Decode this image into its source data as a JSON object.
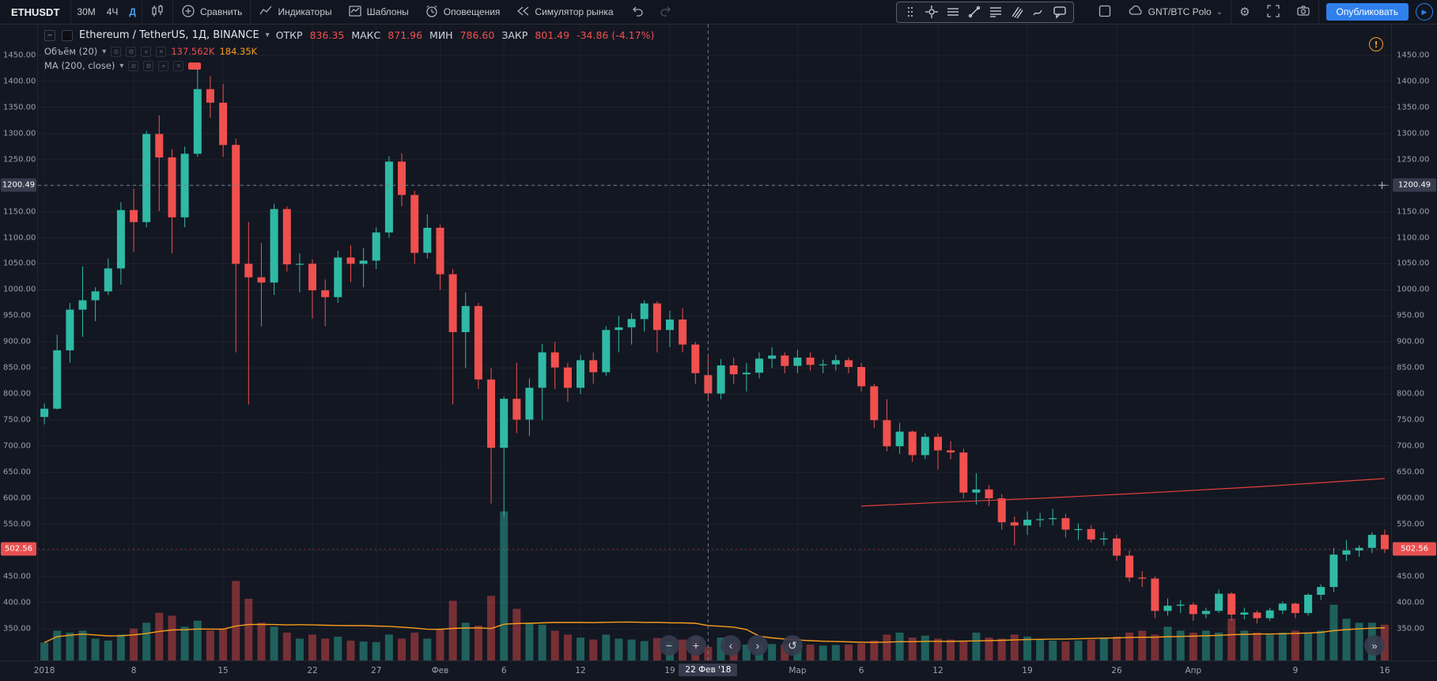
{
  "toolbar": {
    "symbol": "ETHUSDT",
    "intervals": {
      "m30": "30M",
      "h4": "4Ч",
      "d1": "Д"
    },
    "compare": "Сравнить",
    "indicators": "Индикаторы",
    "templates": "Шаблоны",
    "alerts": "Оповещения",
    "simulator": "Симулятор рынка",
    "account": "GNT/BTC Polo",
    "publish": "Опубликовать"
  },
  "symbol_header": {
    "title": "Ethereum / TetherUS, 1Д, BINANCE",
    "open_label": "ОТКР",
    "open": "836.35",
    "high_label": "МАКС",
    "high": "871.96",
    "low_label": "МИН",
    "low": "786.60",
    "close_label": "ЗАКР",
    "close": "801.49",
    "change": "-34.86 (-4.17%)"
  },
  "legend": {
    "volume_title": "Объём (20)",
    "volume_value": "137.562K",
    "volume_ma_value": "184.35K",
    "ma_title": "MA (200, close)"
  },
  "colors": {
    "up": "#2fbaa5",
    "down": "#f0504e",
    "volume_ma": "#f89e1b",
    "ma200": "#e0403a",
    "accent": "#2f80ed",
    "crosshair": "#747d8c"
  },
  "price_axis": {
    "ticks": [
      1450,
      1400,
      1350,
      1300,
      1250,
      1200,
      1150,
      1100,
      1050,
      1000,
      950,
      900,
      850,
      800,
      750,
      700,
      650,
      600,
      550,
      500,
      450,
      400,
      350
    ],
    "crosshair_label": "1200.49",
    "last_label": "502.56"
  },
  "time_axis": {
    "labels": [
      {
        "t": "2018",
        "i": 0
      },
      {
        "t": "8",
        "i": 7
      },
      {
        "t": "15",
        "i": 14
      },
      {
        "t": "22",
        "i": 21
      },
      {
        "t": "27",
        "i": 26
      },
      {
        "t": "Фев",
        "i": 31
      },
      {
        "t": "6",
        "i": 36
      },
      {
        "t": "12",
        "i": 42
      },
      {
        "t": "19",
        "i": 49
      },
      {
        "t": "Мар",
        "i": 59
      },
      {
        "t": "6",
        "i": 64
      },
      {
        "t": "12",
        "i": 70
      },
      {
        "t": "19",
        "i": 77
      },
      {
        "t": "26",
        "i": 84
      },
      {
        "t": "Апр",
        "i": 90
      },
      {
        "t": "9",
        "i": 98
      },
      {
        "t": "16",
        "i": 105
      }
    ],
    "crosshair_label": "22 Фев '18"
  },
  "nav": {
    "zoom_out": "−",
    "zoom_in": "+",
    "left": "‹",
    "right": "›",
    "reset": "↺",
    "goto_end": "»",
    "warning": "!"
  },
  "chart_data": {
    "type": "candlestick",
    "symbol": "ETHUSDT",
    "exchange": "BINANCE",
    "interval": "1D",
    "start_date": "2018-01-01",
    "price_axis_min": 289,
    "price_axis_max": 1509,
    "crosshair_price": 1200.49,
    "crosshair_index": 52,
    "last_price": 502.56,
    "volume_axis_max": 1600,
    "volume_ma_window": 20,
    "columns": [
      "open",
      "high",
      "low",
      "close",
      "volume_k"
    ],
    "candles": [
      [
        756,
        782,
        742,
        772,
        180
      ],
      [
        772,
        914,
        770,
        884,
        300
      ],
      [
        884,
        975,
        860,
        962,
        280
      ],
      [
        962,
        1045,
        910,
        980,
        300
      ],
      [
        980,
        1005,
        940,
        997,
        220
      ],
      [
        997,
        1060,
        990,
        1041,
        200
      ],
      [
        1041,
        1168,
        1010,
        1153,
        260
      ],
      [
        1153,
        1194,
        1073,
        1130,
        320
      ],
      [
        1130,
        1305,
        1120,
        1299,
        380
      ],
      [
        1299,
        1335,
        1151,
        1254,
        480
      ],
      [
        1254,
        1270,
        1070,
        1139,
        450
      ],
      [
        1139,
        1275,
        1120,
        1261,
        340
      ],
      [
        1261,
        1424,
        1255,
        1385,
        400
      ],
      [
        1385,
        1410,
        1330,
        1359,
        300
      ],
      [
        1359,
        1395,
        1255,
        1278,
        320
      ],
      [
        1278,
        1290,
        880,
        1050,
        800
      ],
      [
        1050,
        1130,
        780,
        1024,
        620
      ],
      [
        1024,
        1090,
        930,
        1014,
        380
      ],
      [
        1014,
        1165,
        990,
        1155,
        340
      ],
      [
        1155,
        1160,
        1035,
        1049,
        280
      ],
      [
        1049,
        1070,
        995,
        1050,
        220
      ],
      [
        1050,
        1058,
        945,
        999,
        260
      ],
      [
        999,
        1020,
        930,
        986,
        220
      ],
      [
        986,
        1075,
        975,
        1062,
        240
      ],
      [
        1062,
        1085,
        1015,
        1050,
        200
      ],
      [
        1050,
        1080,
        1005,
        1056,
        190
      ],
      [
        1056,
        1120,
        1040,
        1110,
        185
      ],
      [
        1110,
        1256,
        1100,
        1246,
        260
      ],
      [
        1246,
        1262,
        1160,
        1182,
        220
      ],
      [
        1182,
        1190,
        1050,
        1071,
        280
      ],
      [
        1071,
        1145,
        1060,
        1119,
        220
      ],
      [
        1119,
        1125,
        1000,
        1030,
        320
      ],
      [
        1030,
        1040,
        780,
        919,
        600
      ],
      [
        919,
        995,
        850,
        969,
        380
      ],
      [
        969,
        975,
        810,
        828,
        350
      ],
      [
        828,
        850,
        590,
        697,
        650
      ],
      [
        697,
        795,
        565,
        791,
        1500
      ],
      [
        791,
        860,
        725,
        751,
        520
      ],
      [
        751,
        830,
        720,
        812,
        380
      ],
      [
        812,
        896,
        750,
        880,
        360
      ],
      [
        880,
        900,
        810,
        851,
        300
      ],
      [
        851,
        860,
        785,
        812,
        260
      ],
      [
        812,
        875,
        800,
        865,
        230
      ],
      [
        865,
        880,
        820,
        842,
        210
      ],
      [
        842,
        930,
        835,
        923,
        260
      ],
      [
        923,
        950,
        880,
        928,
        220
      ],
      [
        928,
        955,
        895,
        944,
        210
      ],
      [
        944,
        980,
        920,
        974,
        195
      ],
      [
        974,
        978,
        880,
        923,
        225
      ],
      [
        923,
        960,
        890,
        943,
        190
      ],
      [
        943,
        965,
        880,
        895,
        210
      ],
      [
        895,
        900,
        820,
        840,
        240
      ],
      [
        836.35,
        871.96,
        786.6,
        801.49,
        137.562
      ],
      [
        801,
        867,
        790,
        855,
        230
      ],
      [
        855,
        870,
        820,
        838,
        180
      ],
      [
        838,
        860,
        805,
        841,
        160
      ],
      [
        841,
        880,
        830,
        868,
        170
      ],
      [
        868,
        890,
        850,
        874,
        165
      ],
      [
        874,
        880,
        840,
        854,
        160
      ],
      [
        854,
        885,
        840,
        870,
        170
      ],
      [
        870,
        880,
        845,
        856,
        160
      ],
      [
        856,
        866,
        840,
        857,
        150
      ],
      [
        857,
        875,
        845,
        865,
        155
      ],
      [
        865,
        870,
        840,
        852,
        160
      ],
      [
        852,
        860,
        805,
        815,
        170
      ],
      [
        815,
        820,
        735,
        750,
        200
      ],
      [
        750,
        790,
        690,
        700,
        260
      ],
      [
        700,
        745,
        685,
        728,
        280
      ],
      [
        728,
        730,
        670,
        683,
        230
      ],
      [
        683,
        725,
        675,
        718,
        250
      ],
      [
        718,
        725,
        655,
        692,
        220
      ],
      [
        692,
        710,
        675,
        688,
        210
      ],
      [
        688,
        695,
        600,
        611,
        200
      ],
      [
        611,
        648,
        588,
        617,
        280
      ],
      [
        617,
        625,
        585,
        600,
        230
      ],
      [
        600,
        608,
        540,
        554,
        220
      ],
      [
        554,
        565,
        510,
        548,
        260
      ],
      [
        548,
        575,
        530,
        559,
        240
      ],
      [
        559,
        572,
        545,
        560,
        210
      ],
      [
        560,
        580,
        548,
        562,
        200
      ],
      [
        562,
        570,
        525,
        540,
        190
      ],
      [
        540,
        552,
        520,
        541,
        200
      ],
      [
        541,
        548,
        515,
        521,
        210
      ],
      [
        521,
        535,
        510,
        523,
        230
      ],
      [
        523,
        530,
        480,
        490,
        240
      ],
      [
        490,
        500,
        440,
        448,
        280
      ],
      [
        448,
        460,
        430,
        446,
        300
      ],
      [
        446,
        450,
        370,
        384,
        260
      ],
      [
        384,
        408,
        375,
        394,
        340
      ],
      [
        394,
        405,
        380,
        396,
        300
      ],
      [
        396,
        400,
        365,
        378,
        280
      ],
      [
        378,
        390,
        370,
        384,
        300
      ],
      [
        384,
        425,
        380,
        417,
        280
      ],
      [
        417,
        420,
        365,
        377,
        420
      ],
      [
        377,
        390,
        368,
        381,
        300
      ],
      [
        381,
        385,
        360,
        370,
        280
      ],
      [
        370,
        390,
        365,
        385,
        260
      ],
      [
        385,
        402,
        378,
        398,
        280
      ],
      [
        398,
        400,
        370,
        380,
        300
      ],
      [
        380,
        418,
        375,
        415,
        280
      ],
      [
        415,
        435,
        405,
        430,
        300
      ],
      [
        430,
        505,
        420,
        492,
        560
      ],
      [
        492,
        520,
        480,
        500,
        420
      ],
      [
        500,
        510,
        488,
        505,
        380
      ],
      [
        505,
        535,
        495,
        530,
        380
      ],
      [
        530,
        540,
        495,
        502.56,
        360
      ]
    ],
    "ma200_points": [
      [
        64,
        585
      ],
      [
        70,
        592
      ],
      [
        78,
        600
      ],
      [
        86,
        610
      ],
      [
        95,
        622
      ],
      [
        105,
        638
      ]
    ]
  }
}
